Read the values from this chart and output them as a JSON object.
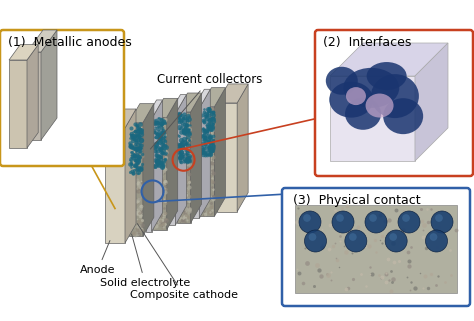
{
  "bg_color": "#ffffff",
  "label_1": "(1)  Metallic anodes",
  "label_2": "(2)  Interfaces",
  "label_3": "(3)  Physical contact",
  "label_current": "Current collectors",
  "label_cathode": "Composite cathode",
  "label_electrolyte": "Solid electrolyte",
  "label_anode": "Anode",
  "box1_color": "#c8961a",
  "box2_color": "#c84020",
  "box3_color": "#3060a8",
  "c_anode_face": "#d8d2c0",
  "c_anode_side": "#b0a898",
  "c_anode_top": "#c8c0b0",
  "c_cath_face": "#9a9888",
  "c_cath_side": "#787870",
  "c_cath_top": "#b0ae9e",
  "c_coll_face": "#c8c8cc",
  "c_coll_side": "#a8a8b0",
  "c_coll_top": "#d8d8dc",
  "c_teal": "#2a7890",
  "font_size_label": 9,
  "font_size_annot": 8
}
